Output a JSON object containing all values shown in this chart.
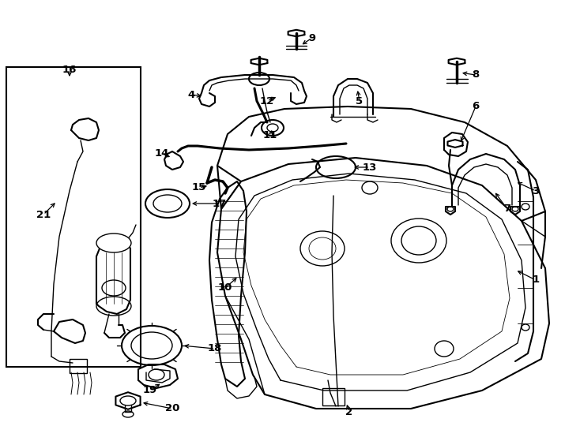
{
  "bg_color": "#ffffff",
  "line_color": "#000000",
  "fig_width": 7.34,
  "fig_height": 5.4,
  "dpi": 100,
  "callouts": {
    "1": [
      6.82,
      3.55,
      6.5,
      3.42,
      "left"
    ],
    "2": [
      4.42,
      5.22,
      4.38,
      5.05,
      "left"
    ],
    "3": [
      6.82,
      2.45,
      6.48,
      2.28,
      "left"
    ],
    "4": [
      2.42,
      1.12,
      2.62,
      1.18,
      "right"
    ],
    "5": [
      4.52,
      1.25,
      4.52,
      1.1,
      "left"
    ],
    "6": [
      6.05,
      1.3,
      5.82,
      1.38,
      "left"
    ],
    "7": [
      6.35,
      2.55,
      6.18,
      2.4,
      "left"
    ],
    "8": [
      6.05,
      0.88,
      5.82,
      0.98,
      "left"
    ],
    "9": [
      3.92,
      0.45,
      3.8,
      0.6,
      "left"
    ],
    "10": [
      2.88,
      3.62,
      3.08,
      3.48,
      "left"
    ],
    "11": [
      3.38,
      1.62,
      3.48,
      1.72,
      "left"
    ],
    "12": [
      3.38,
      1.25,
      3.55,
      1.32,
      "left"
    ],
    "13": [
      4.68,
      2.08,
      4.42,
      2.18,
      "left"
    ],
    "14": [
      2.05,
      1.88,
      2.28,
      1.92,
      "right"
    ],
    "15": [
      2.52,
      2.35,
      2.72,
      2.3,
      "right"
    ],
    "16": [
      0.85,
      0.85,
      0.85,
      1.05,
      "left"
    ],
    "17": [
      2.8,
      2.55,
      2.52,
      2.55,
      "left"
    ],
    "18": [
      2.72,
      4.48,
      2.42,
      4.38,
      "left"
    ],
    "19": [
      1.9,
      4.92,
      2.05,
      4.82,
      "right"
    ],
    "20": [
      2.22,
      5.18,
      1.98,
      5.08,
      "left"
    ],
    "21": [
      0.55,
      2.68,
      0.7,
      2.52,
      "left"
    ]
  }
}
